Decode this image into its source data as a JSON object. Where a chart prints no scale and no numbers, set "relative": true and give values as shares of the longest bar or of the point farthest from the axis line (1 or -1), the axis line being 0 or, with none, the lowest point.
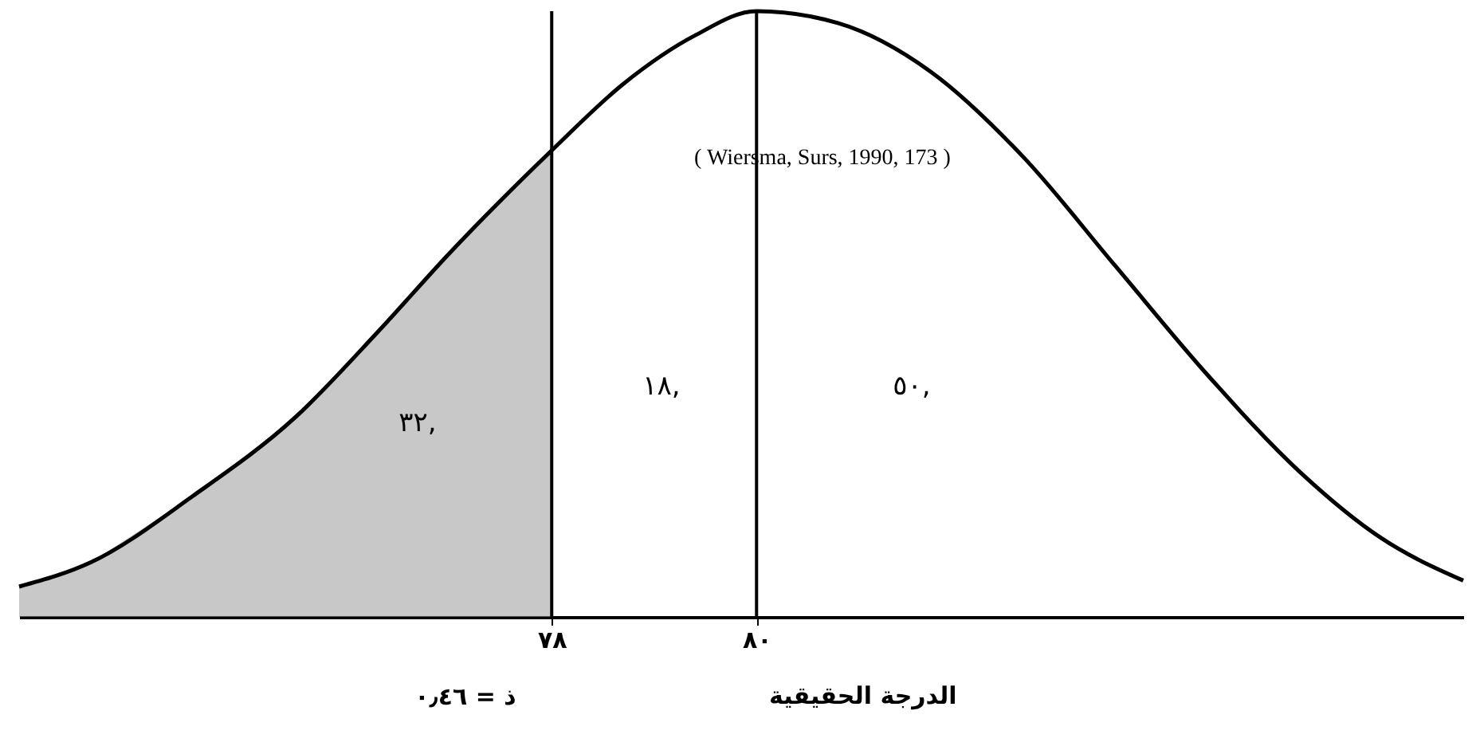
{
  "chart_data": {
    "type": "area",
    "relative": true,
    "xlabel": "الدرجة الحقيقية",
    "xlim": [
      72.8,
      86.9
    ],
    "xticks": [
      {
        "value": 78,
        "label": "٧٨"
      },
      {
        "value": 80,
        "label": "٨٠"
      }
    ],
    "series": [
      {
        "color": "#9a9a9a",
        "x": [
          72.8,
          73.5,
          74.5,
          75.5,
          76.3,
          77.0,
          78.0
        ],
        "values": [
          0.05,
          0.09,
          0.2,
          0.33,
          0.47,
          0.6,
          0.77
        ]
      },
      {
        "type": "line",
        "color": "#000000",
        "x": [
          72.8,
          73.5,
          74.5,
          75.5,
          76.3,
          77.0,
          78.0,
          78.7,
          79.4,
          80.0,
          80.8,
          81.7,
          82.6,
          83.5,
          84.4,
          85.3,
          86.1,
          86.9
        ],
        "values": [
          0.05,
          0.09,
          0.2,
          0.33,
          0.47,
          0.6,
          0.77,
          0.88,
          0.96,
          1,
          0.98,
          0.9,
          0.76,
          0.58,
          0.4,
          0.24,
          0.13,
          0.06
        ]
      }
    ],
    "ref_lines": [
      {
        "axis": "x",
        "value": 78,
        "color": "#000000"
      },
      {
        "axis": "x",
        "value": 80,
        "color": "#000000"
      }
    ],
    "annotations": [
      "( Wiersma, Surs, 1990, 173 )",
      "ذ = ٠٫٤٦",
      "٣٢,",
      "١٨,",
      "٥٠,"
    ],
    "grid": false
  }
}
